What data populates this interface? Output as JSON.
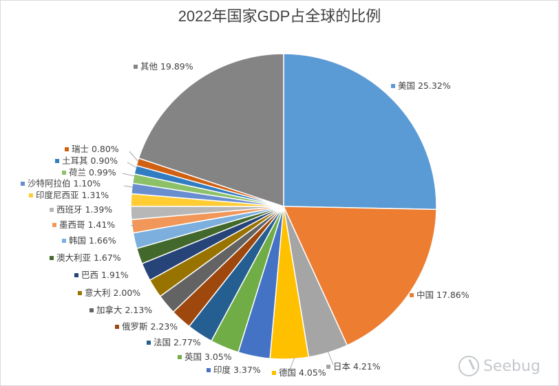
{
  "chart_data": {
    "type": "pie",
    "title": "2022年国家GDP占全球的比例",
    "unit": "%",
    "slices": [
      {
        "label": "美国",
        "value": 25.32,
        "color": "#5b9bd5"
      },
      {
        "label": "中国",
        "value": 17.86,
        "color": "#ed7d31"
      },
      {
        "label": "日本",
        "value": 4.21,
        "color": "#a5a5a5"
      },
      {
        "label": "德国",
        "value": 4.05,
        "color": "#ffc000"
      },
      {
        "label": "印度",
        "value": 3.37,
        "color": "#4472c4"
      },
      {
        "label": "英国",
        "value": 3.05,
        "color": "#70ad47"
      },
      {
        "label": "法国",
        "value": 2.77,
        "color": "#255e91"
      },
      {
        "label": "俄罗斯",
        "value": 2.23,
        "color": "#9e480e"
      },
      {
        "label": "加拿大",
        "value": 2.13,
        "color": "#636363"
      },
      {
        "label": "意大利",
        "value": 2.0,
        "color": "#997300"
      },
      {
        "label": "巴西",
        "value": 1.91,
        "color": "#264478"
      },
      {
        "label": "澳大利亚",
        "value": 1.67,
        "color": "#43682b"
      },
      {
        "label": "韩国",
        "value": 1.66,
        "color": "#7cafdd"
      },
      {
        "label": "墨西哥",
        "value": 1.41,
        "color": "#f1975a"
      },
      {
        "label": "西班牙",
        "value": 1.39,
        "color": "#b7b7b7"
      },
      {
        "label": "印度尼西亚",
        "value": 1.31,
        "color": "#ffcd33"
      },
      {
        "label": "沙特阿拉伯",
        "value": 1.1,
        "color": "#698ed0"
      },
      {
        "label": "荷兰",
        "value": 0.99,
        "color": "#8cc168"
      },
      {
        "label": "土耳其",
        "value": 0.9,
        "color": "#327dc2"
      },
      {
        "label": "瑞士",
        "value": 0.8,
        "color": "#d26012"
      },
      {
        "label": "其他",
        "value": 19.89,
        "color": "#848484"
      }
    ]
  },
  "watermark": {
    "text": "Seebug"
  }
}
